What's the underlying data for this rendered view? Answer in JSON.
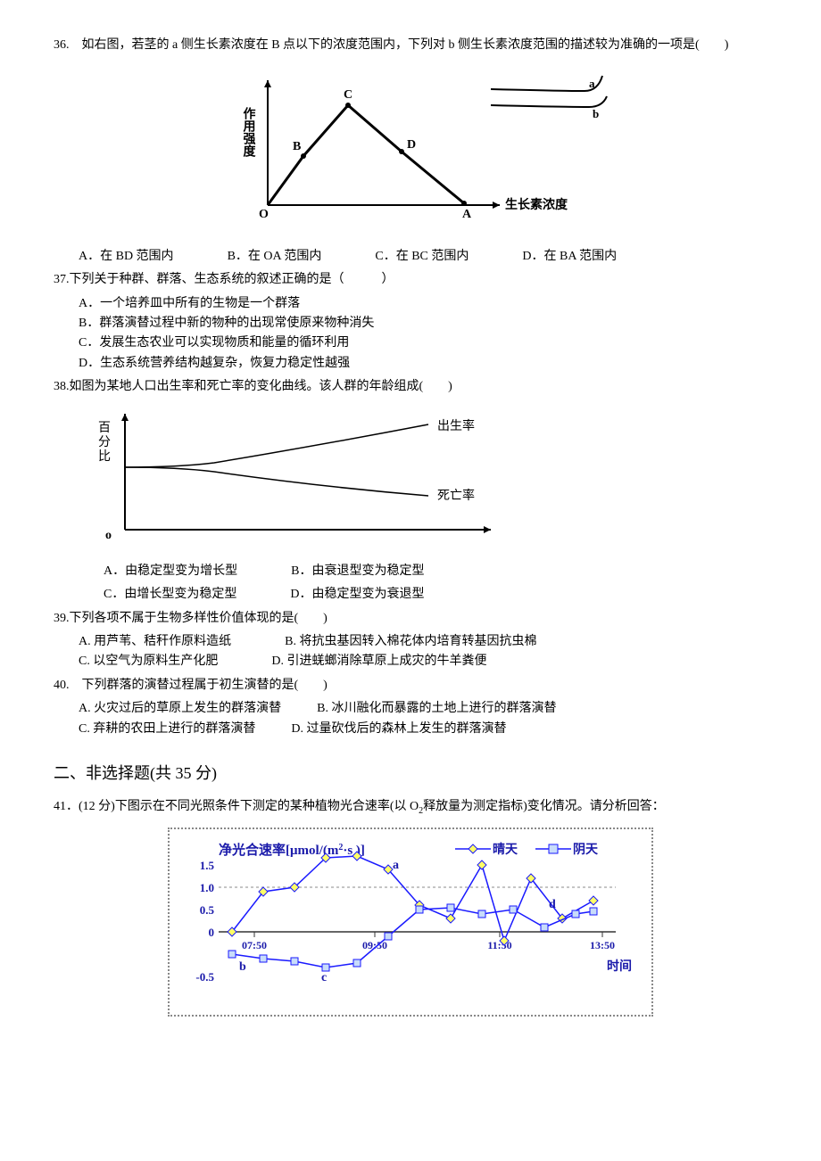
{
  "q36": {
    "stem": "36.　如右图，若茎的 a 侧生长素浓度在 B 点以下的浓度范围内，下列对 b 侧生长素浓度范围的描述较为准确的一项是(　　)",
    "optA": "A．在 BD 范围内",
    "optB": "B．在 OA 范围内",
    "optC": "C．在 BC 范围内",
    "optD": "D．在 BA 范围内",
    "ylabel": "作用强度",
    "xlabel": "生长素浓度",
    "pt": {
      "O": "O",
      "A": "A",
      "B": "B",
      "C": "C",
      "D": "D"
    },
    "stem_letters": {
      "a": "a",
      "b": "b"
    }
  },
  "q37": {
    "stem": "37.下列关于种群、群落、生态系统的叙述正确的是（　　　）",
    "optA": "A．一个培养皿中所有的生物是一个群落",
    "optB": "B．群落演替过程中新的物种的出现常使原来物种消失",
    "optC": "C．发展生态农业可以实现物质和能量的循环利用",
    "optD": "D．生态系统营养结构越复杂，恢复力稳定性越强"
  },
  "q38": {
    "stem": "38.如图为某地人口出生率和死亡率的变化曲线。该人群的年龄组成(　　)",
    "ylabel": "百分比",
    "xorigin": "o",
    "line1": "出生率",
    "line2": "死亡率",
    "optA": "A．由稳定型变为增长型",
    "optB": "B．由衰退型变为稳定型",
    "optC": "C．由增长型变为稳定型",
    "optD": "D．由稳定型变为衰退型"
  },
  "q39": {
    "stem": "39.下列各项不属于生物多样性价值体现的是(　　)",
    "optA": "A. 用芦苇、秸秆作原料造纸",
    "optB": "B. 将抗虫基因转入棉花体内培育转基因抗虫棉",
    "optC": "C. 以空气为原料生产化肥",
    "optD": "D. 引进蜣螂消除草原上成灾的牛羊粪便"
  },
  "q40": {
    "stem": "40.　下列群落的演替过程属于初生演替的是(　　)",
    "optA": "A. 火灾过后的草原上发生的群落演替",
    "optB": "B. 冰川融化而暴露的土地上进行的群落演替",
    "optC": "C. 弃耕的农田上进行的群落演替",
    "optD": "D. 过量砍伐后的森林上发生的群落演替"
  },
  "section2": {
    "title": "二、非选择题(共 35 分)"
  },
  "q41": {
    "stem_pre": "41．(12 分)下图示在不同光照条件下测定的某种植物光合速率(以 O",
    "stem_sub": "2",
    "stem_post": "释放量为测定指标)变化情况。请分析回答：",
    "chart": {
      "ylabel_pre": "净光合速率[μmol/(m",
      "ylabel_sup": "2",
      "ylabel_post": "·s )]",
      "legend_sunny": "晴天",
      "legend_cloudy": "阴天",
      "xlabel": "时间",
      "yticks": [
        "1.5",
        "1.0",
        "0.5",
        "0",
        "-0.5"
      ],
      "xticks": [
        "07:50",
        "09:50",
        "11:50",
        "13:50"
      ],
      "annotations": {
        "a": "a",
        "b": "b",
        "c": "c",
        "d": "d"
      },
      "colors": {
        "grid": "#888888",
        "sunny_stroke": "#1a1aff",
        "sunny_fill": "#ffff66",
        "cloudy_stroke": "#1a1aff",
        "cloudy_fill": "#c8dcfa",
        "text": "#1a1aaa",
        "axis": "#333333",
        "dashed": "#888888"
      },
      "sunny_points": [
        [
          60,
          105
        ],
        [
          95,
          60
        ],
        [
          130,
          55
        ],
        [
          165,
          22
        ],
        [
          200,
          20
        ],
        [
          235,
          35
        ],
        [
          270,
          75
        ],
        [
          305,
          90
        ],
        [
          340,
          30
        ],
        [
          365,
          115
        ],
        [
          395,
          45
        ],
        [
          430,
          90
        ],
        [
          465,
          70
        ]
      ],
      "cloudy_points": [
        [
          60,
          130
        ],
        [
          95,
          135
        ],
        [
          130,
          138
        ],
        [
          165,
          145
        ],
        [
          200,
          140
        ],
        [
          235,
          110
        ],
        [
          270,
          80
        ],
        [
          305,
          78
        ],
        [
          340,
          85
        ],
        [
          375,
          80
        ],
        [
          410,
          100
        ],
        [
          445,
          85
        ],
        [
          465,
          82
        ]
      ]
    }
  }
}
